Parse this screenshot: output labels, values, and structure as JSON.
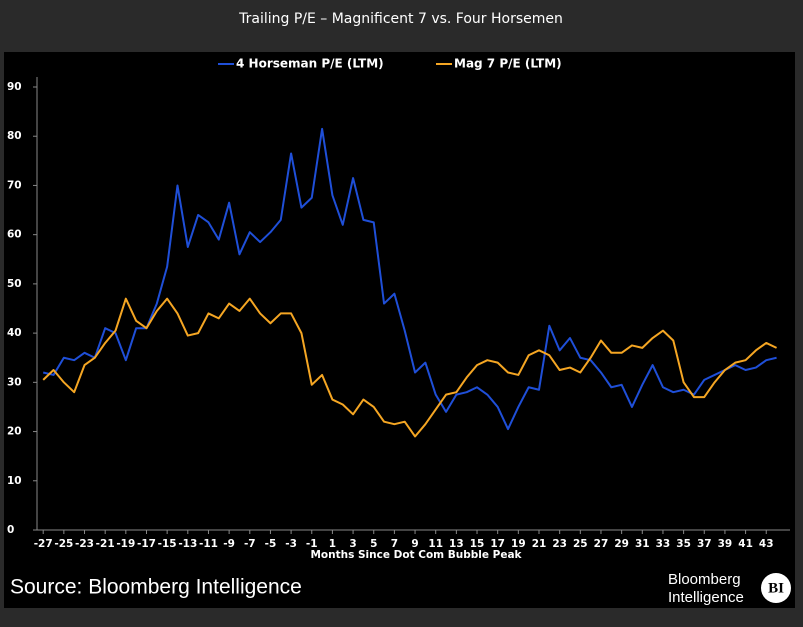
{
  "chart_data": {
    "type": "line",
    "title": "Trailing P/E – Magnificent 7 vs. Four Horsemen",
    "x_label": "Months Since Dot Com Bubble Peak",
    "source": "Source: Bloomberg Intelligence",
    "logo": {
      "line1": "Bloomberg",
      "line2": "Intelligence",
      "badge": "BI"
    },
    "x": [
      -27,
      -26,
      -25,
      -24,
      -23,
      -22,
      -21,
      -20,
      -19,
      -18,
      -17,
      -16,
      -15,
      -14,
      -13,
      -12,
      -11,
      -10,
      -9,
      -8,
      -7,
      -6,
      -5,
      -4,
      -3,
      -2,
      -1,
      0,
      1,
      2,
      3,
      4,
      5,
      6,
      7,
      8,
      9,
      10,
      11,
      12,
      13,
      14,
      15,
      16,
      17,
      18,
      19,
      20,
      21,
      22,
      23,
      24,
      25,
      26,
      27,
      28,
      29,
      30,
      31,
      32,
      33,
      34,
      35,
      36,
      37,
      38,
      39,
      40,
      41,
      42,
      43,
      44
    ],
    "series": [
      {
        "name": "4 Horseman P/E (LTM)",
        "color": "#1f4fd8",
        "values": [
          32,
          31.5,
          35,
          34.5,
          36,
          35,
          41,
          40,
          34.5,
          41,
          41,
          46,
          53.5,
          70,
          57.5,
          64,
          62.5,
          59,
          66.5,
          56,
          60.5,
          58.5,
          60.5,
          63,
          76.5,
          65.5,
          67.5,
          81.5,
          68,
          62,
          71.5,
          63,
          62.5,
          46,
          48,
          40.5,
          32,
          34,
          27.5,
          24,
          27.5,
          28,
          29,
          27.5,
          25,
          20.5,
          25,
          29,
          28.5,
          41.5,
          36.5,
          39,
          35,
          34.5,
          32,
          29,
          29.5,
          25,
          29.5,
          33.5,
          29,
          28,
          28.5,
          27.5,
          30.5,
          31.5,
          32.5,
          33.5,
          32.5,
          33,
          34.5,
          35
        ]
      },
      {
        "name": "Mag 7 P/E (LTM)",
        "color": "#f5a623",
        "values": [
          30.5,
          32.5,
          30,
          28,
          33.5,
          35,
          38,
          40.5,
          47,
          42.5,
          41,
          44.5,
          47,
          44,
          39.5,
          40,
          44,
          43,
          46,
          44.5,
          47,
          44,
          42,
          44,
          44,
          40,
          29.5,
          31.5,
          26.5,
          25.5,
          23.5,
          26.5,
          25,
          22,
          21.5,
          22,
          19,
          21.5,
          24.5,
          27.5,
          28,
          31,
          33.5,
          34.5,
          34,
          32,
          31.5,
          35.5,
          36.5,
          35.5,
          32.5,
          33,
          32,
          35,
          38.5,
          36,
          36,
          37.5,
          37,
          39,
          40.5,
          38.5,
          30,
          27,
          27,
          30,
          32.5,
          34,
          34.5,
          36.5,
          38,
          37
        ]
      }
    ],
    "xlim": [
      -27.6,
      45.3
    ],
    "xticks": [
      -27,
      -25,
      -23,
      -21,
      -19,
      -17,
      -15,
      -13,
      -11,
      -9,
      -7,
      -5,
      -3,
      -1,
      1,
      3,
      5,
      7,
      9,
      11,
      13,
      15,
      17,
      19,
      21,
      23,
      25,
      27,
      29,
      31,
      33,
      35,
      37,
      39,
      41,
      43
    ],
    "ylim": [
      0,
      90
    ],
    "yticks": [
      0,
      10,
      20,
      30,
      40,
      50,
      60,
      70,
      80,
      90
    ]
  }
}
